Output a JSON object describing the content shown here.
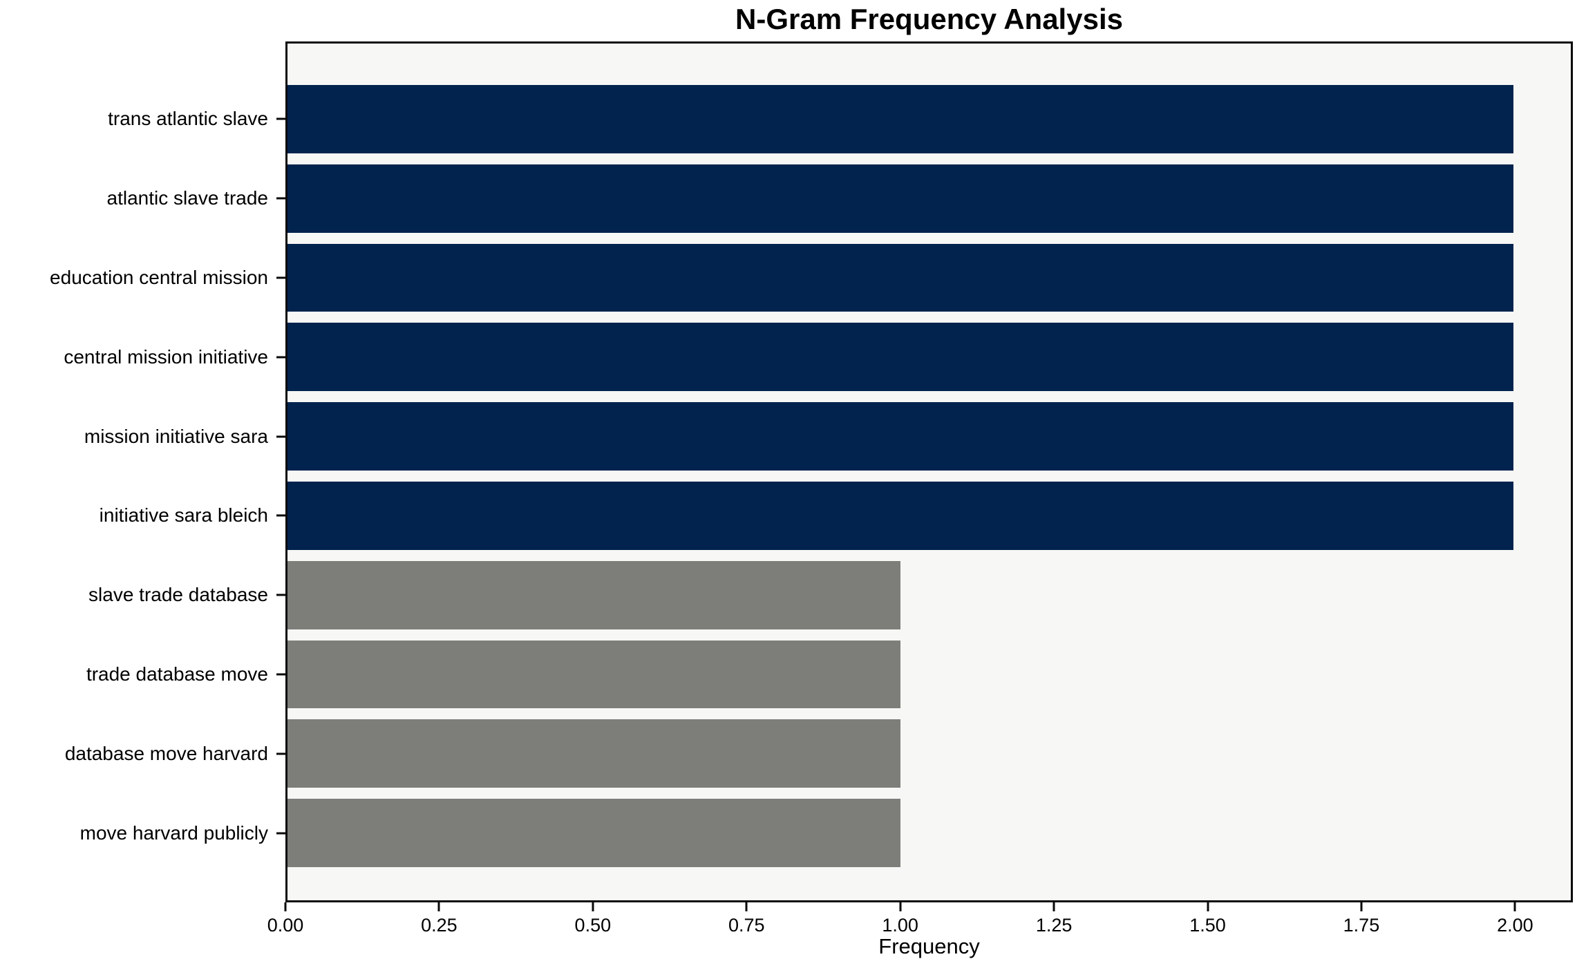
{
  "chart_data": {
    "type": "bar",
    "orientation": "horizontal",
    "title": "N-Gram Frequency Analysis",
    "xlabel": "Frequency",
    "ylabel": "",
    "categories": [
      "trans atlantic slave",
      "atlantic slave trade",
      "education central mission",
      "central mission initiative",
      "mission initiative sara",
      "initiative sara bleich",
      "slave trade database",
      "trade database move",
      "database move harvard",
      "move harvard publicly"
    ],
    "values": [
      2,
      2,
      2,
      2,
      2,
      2,
      1,
      1,
      1,
      1
    ],
    "bar_colors": [
      "#02234d",
      "#02234d",
      "#02234d",
      "#02234d",
      "#02234d",
      "#02234d",
      "#7d7d7a",
      "#7d7d7a",
      "#7d7d7a",
      "#7d7d7a"
    ],
    "colors": {
      "high_frequency_navy": "#02234d",
      "low_frequency_gray": "#7d7d7a",
      "plot_background": "#f7f7f5",
      "figure_background": "#ffffff",
      "axis_color": "#0a0a0a"
    },
    "xlim": [
      0,
      2.094
    ],
    "xticks": {
      "values": [
        0.0,
        0.25,
        0.5,
        0.75,
        1.0,
        1.25,
        1.5,
        1.75,
        2.0
      ],
      "labels": [
        "0.00",
        "0.25",
        "0.50",
        "0.75",
        "1.00",
        "1.25",
        "1.50",
        "1.75",
        "2.00"
      ]
    },
    "grid": false,
    "legend": null
  }
}
